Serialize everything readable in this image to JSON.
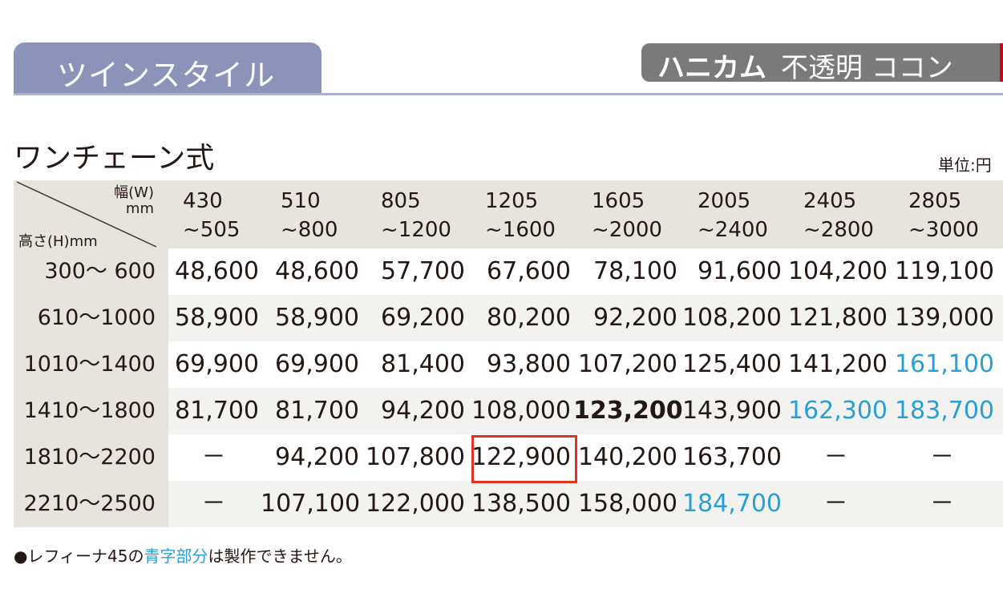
{
  "header": {
    "tab_label": "ツインスタイル",
    "badge_bold": "ハニカム",
    "badge_rest": "不透明 ココン"
  },
  "section": {
    "title": "ワンチェーン式",
    "unit": "単位:円"
  },
  "table": {
    "corner_width": "幅(W)",
    "corner_mm": "mm",
    "corner_height": "高さ(H)mm",
    "columns": [
      {
        "from": "430",
        "to": "~505"
      },
      {
        "from": "510",
        "to": "~800"
      },
      {
        "from": "805",
        "to": "~1200"
      },
      {
        "from": "1205",
        "to": "~1600"
      },
      {
        "from": "1605",
        "to": "~2000"
      },
      {
        "from": "2005",
        "to": "~2400"
      },
      {
        "from": "2405",
        "to": "~2800"
      },
      {
        "from": "2805",
        "to": "~3000"
      }
    ],
    "rows": [
      {
        "label": "300～ 600",
        "cells": [
          {
            "v": "48,600"
          },
          {
            "v": "48,600"
          },
          {
            "v": "57,700"
          },
          {
            "v": "67,600"
          },
          {
            "v": "78,100"
          },
          {
            "v": "91,600"
          },
          {
            "v": "104,200"
          },
          {
            "v": "119,100"
          }
        ]
      },
      {
        "label": "610～1000",
        "cells": [
          {
            "v": "58,900"
          },
          {
            "v": "58,900"
          },
          {
            "v": "69,200"
          },
          {
            "v": "80,200"
          },
          {
            "v": "92,200"
          },
          {
            "v": "108,200"
          },
          {
            "v": "121,800"
          },
          {
            "v": "139,000"
          }
        ]
      },
      {
        "label": "1010～1400",
        "cells": [
          {
            "v": "69,900"
          },
          {
            "v": "69,900"
          },
          {
            "v": "81,400"
          },
          {
            "v": "93,800"
          },
          {
            "v": "107,200"
          },
          {
            "v": "125,400"
          },
          {
            "v": "141,200"
          },
          {
            "v": "161,100",
            "blue": true
          }
        ]
      },
      {
        "label": "1410～1800",
        "cells": [
          {
            "v": "81,700"
          },
          {
            "v": "81,700"
          },
          {
            "v": "94,200"
          },
          {
            "v": "108,000"
          },
          {
            "v": "123,200",
            "bold": true
          },
          {
            "v": "143,900"
          },
          {
            "v": "162,300",
            "blue": true
          },
          {
            "v": "183,700",
            "blue": true
          }
        ]
      },
      {
        "label": "1810～2200",
        "cells": [
          {
            "v": "－"
          },
          {
            "v": "94,200"
          },
          {
            "v": "107,800"
          },
          {
            "v": "122,900",
            "highlighted": true
          },
          {
            "v": "140,200"
          },
          {
            "v": "163,700"
          },
          {
            "v": "－"
          },
          {
            "v": "－"
          }
        ]
      },
      {
        "label": "2210～2500",
        "cells": [
          {
            "v": "－"
          },
          {
            "v": "107,100"
          },
          {
            "v": "122,000"
          },
          {
            "v": "138,500"
          },
          {
            "v": "158,000"
          },
          {
            "v": "184,700",
            "blue": true
          },
          {
            "v": "－"
          },
          {
            "v": "－"
          }
        ]
      }
    ]
  },
  "note": {
    "prefix": "●レフィーナ45の",
    "blue": "青字部分",
    "suffix": "は製作できません。"
  },
  "colors": {
    "tab": "#8b93b8",
    "badge": "#7a7a7a",
    "blue_text": "#2a9fd6",
    "highlight_box": "#e2321f"
  }
}
